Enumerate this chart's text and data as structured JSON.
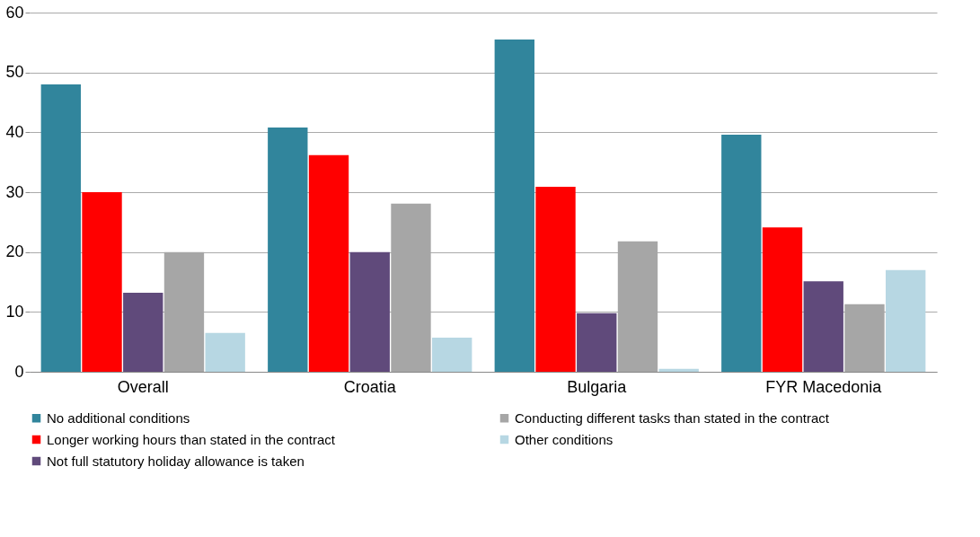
{
  "chart_data": {
    "type": "bar",
    "categories": [
      "Overall",
      "Croatia",
      "Bulgaria",
      "FYR Macedonia"
    ],
    "series": [
      {
        "name": "No additional conditions",
        "color": "#31859c",
        "values": [
          48,
          40.8,
          55.5,
          39.6
        ]
      },
      {
        "name": "Longer working hours than stated in the contract",
        "color": "#ff0000",
        "values": [
          30,
          36.2,
          30.9,
          24.1
        ]
      },
      {
        "name": "Not full statutory holiday allowance is taken",
        "color": "#604a7b",
        "values": [
          13.2,
          20,
          9.8,
          15.1
        ]
      },
      {
        "name": "Conducting different tasks than stated in the contract",
        "color": "#a6a6a6",
        "values": [
          20,
          28.1,
          21.8,
          11.3
        ]
      },
      {
        "name": "Other conditions",
        "color": "#b7d7e3",
        "values": [
          6.5,
          5.7,
          0.5,
          17
        ]
      }
    ],
    "ylim": [
      0,
      60
    ],
    "yticks": [
      0,
      10,
      20,
      30,
      40,
      50,
      60
    ],
    "grid": "y",
    "legend": "bottom"
  }
}
